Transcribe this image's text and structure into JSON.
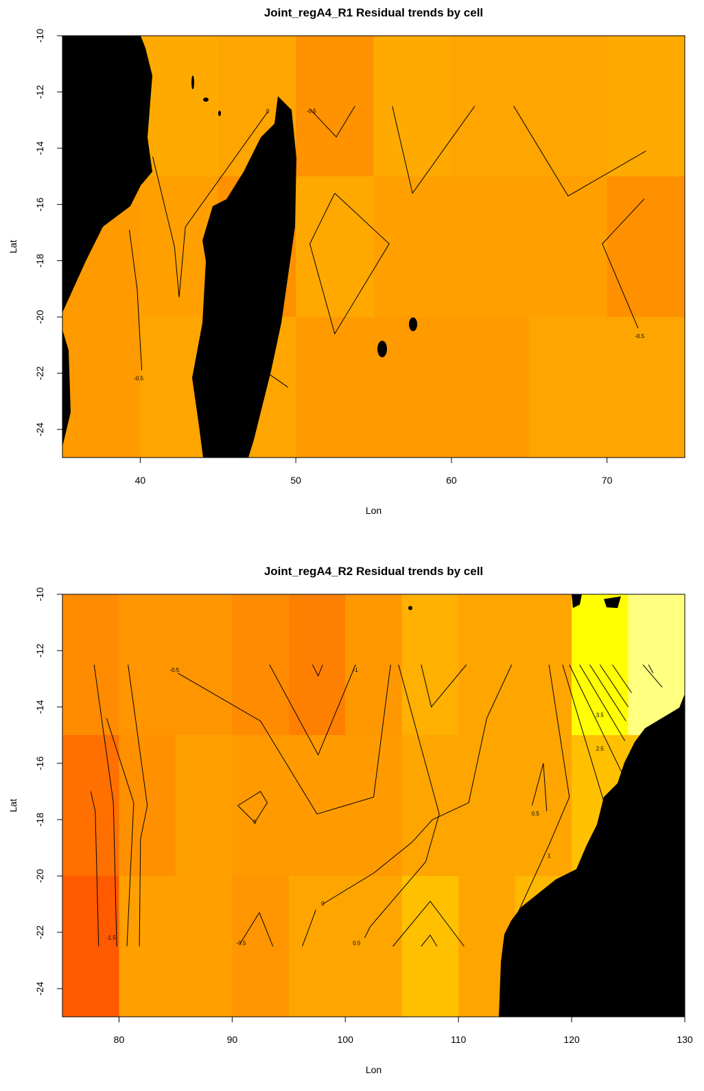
{
  "chart_data": [
    {
      "type": "heatmap",
      "title": "Joint_regA4_R1 Residual trends by cell",
      "x_label": "Lon",
      "y_label": "Lat",
      "xlim": [
        35,
        75
      ],
      "ylim": [
        -25,
        -10
      ],
      "xticks": [
        40,
        50,
        60,
        70
      ],
      "yticks": [
        -10,
        -12,
        -14,
        -16,
        -18,
        -20,
        -22,
        -24
      ],
      "x_edges": [
        35,
        40,
        45,
        50,
        55,
        60,
        65,
        70,
        75
      ],
      "y_edges": [
        -10,
        -15,
        -20,
        -25
      ],
      "cell_colors": [
        [
          "#ffaa00",
          "#ffaa00",
          "#ffa500",
          "#ff9200",
          "#ffaa00",
          "#ffa500",
          "#ffa500",
          "#ffaa00"
        ],
        [
          "#ff9a00",
          "#ffa000",
          "#ff9000",
          "#ffa800",
          "#ffa000",
          "#ffa000",
          "#ffa000",
          "#ff9000"
        ],
        [
          "#ff9a00",
          "#ffa500",
          "#ffa500",
          "#ff9a00",
          "#ff9a00",
          "#ff9a00",
          "#ffa500",
          "#ffa500"
        ]
      ],
      "contour_color": "#000000",
      "contours": [
        {
          "points": [
            [
              39.3,
              -16.9
            ],
            [
              39.8,
              -19
            ],
            [
              40.1,
              -21.9
            ]
          ],
          "label": -0.5,
          "label_at": [
            39.9,
            -22.2
          ]
        },
        {
          "points": [
            [
              40.8,
              -14.3
            ],
            [
              42.2,
              -17.5
            ],
            [
              42.5,
              -19.3
            ],
            [
              42.9,
              -16.8
            ],
            [
              48.2,
              -12.7
            ]
          ],
          "label": 0,
          "label_at": [
            48.2,
            -12.7
          ]
        },
        {
          "points": [
            [
              50.9,
              -12.6
            ],
            [
              52.6,
              -13.6
            ],
            [
              53.8,
              -12.5
            ]
          ],
          "label": -0.5,
          "label_at": [
            51,
            -12.7
          ]
        },
        {
          "points": [
            [
              52.5,
              -15.6
            ],
            [
              50.9,
              -17.4
            ],
            [
              52.5,
              -20.6
            ],
            [
              56,
              -17.4
            ],
            [
              52.5,
              -15.6
            ]
          ]
        },
        {
          "points": [
            [
              56.2,
              -12.5
            ],
            [
              57.5,
              -15.6
            ],
            [
              61.5,
              -12.5
            ]
          ]
        },
        {
          "points": [
            [
              64,
              -12.5
            ],
            [
              67.5,
              -15.7
            ],
            [
              72.5,
              -14.1
            ]
          ]
        },
        {
          "points": [
            [
              72.4,
              -15.8
            ],
            [
              69.7,
              -17.4
            ],
            [
              72,
              -20.4
            ]
          ],
          "label": -0.5,
          "label_at": [
            72.1,
            -20.7
          ]
        },
        {
          "points": [
            [
              48.2,
              -22
            ],
            [
              49.5,
              -22.5
            ]
          ]
        }
      ]
    },
    {
      "type": "heatmap",
      "title": "Joint_regA4_R2 Residual trends by cell",
      "x_label": "Lon",
      "y_label": "Lat",
      "xlim": [
        75,
        130
      ],
      "ylim": [
        -25,
        -10
      ],
      "xticks": [
        80,
        90,
        100,
        110,
        120,
        130
      ],
      "yticks": [
        -10,
        -12,
        -14,
        -16,
        -18,
        -20,
        -22,
        -24
      ],
      "x_edges": [
        75,
        80,
        85,
        90,
        95,
        100,
        105,
        110,
        115,
        120,
        125,
        130
      ],
      "y_edges": [
        -10,
        -15,
        -20,
        -25
      ],
      "cell_colors": [
        [
          "#ff8c00",
          "#ff9500",
          "#ff9500",
          "#ff8c00",
          "#ff8000",
          "#ff9800",
          "#ffb000",
          "#ffa500",
          "#ffa500",
          "#ffff00",
          "#ffff80"
        ],
        [
          "#ff7000",
          "#ff9000",
          "#ffa000",
          "#ff9a00",
          "#ff9a00",
          "#ff9a00",
          "#ffa500",
          "#ffa500",
          "#ffa500",
          "#ffc000",
          "#ffc000"
        ],
        [
          "#ff5a00",
          "#ffa000",
          "#ffa000",
          "#ff9500",
          "#ffa500",
          "#ffa500",
          "#ffc000",
          "#ffa500",
          "#ffb800",
          "#ffc000",
          "#ffc000"
        ]
      ],
      "contour_color": "#000000",
      "contours": [
        {
          "points": [
            [
              77.8,
              -12.5
            ],
            [
              79.5,
              -17.4
            ],
            [
              79.8,
              -22.5
            ]
          ]
        },
        {
          "points": [
            [
              80.8,
              -12.5
            ],
            [
              82.5,
              -17.5
            ],
            [
              81.9,
              -18.7
            ],
            [
              81.8,
              -22.5
            ]
          ]
        },
        {
          "points": [
            [
              77.5,
              -17
            ],
            [
              77.9,
              -17.7
            ],
            [
              78.2,
              -22.5
            ]
          ],
          "label": -1.5,
          "label_at": [
            79.3,
            -22.2
          ]
        },
        {
          "points": [
            [
              78.9,
              -14.4
            ],
            [
              81.3,
              -17.4
            ],
            [
              80.7,
              -22.5
            ]
          ]
        },
        {
          "points": [
            [
              85.2,
              -12.8
            ],
            [
              92.5,
              -14.5
            ],
            [
              97.5,
              -17.8
            ],
            [
              102.5,
              -17.2
            ],
            [
              104,
              -12.5
            ]
          ],
          "label": -0.5,
          "label_at": [
            84.9,
            -12.7
          ]
        },
        {
          "points": [
            [
              93.3,
              -12.5
            ],
            [
              97.6,
              -15.7
            ],
            [
              100.9,
              -12.5
            ]
          ],
          "label": -1,
          "label_at": [
            100.9,
            -12.7
          ]
        },
        {
          "points": [
            [
              97.1,
              -12.5
            ],
            [
              97.6,
              -12.9
            ],
            [
              98,
              -12.5
            ]
          ]
        },
        {
          "points": [
            [
              90.5,
              -17.5
            ],
            [
              92.5,
              -17
            ],
            [
              93.1,
              -17.4
            ],
            [
              92,
              -18.1
            ],
            [
              90.5,
              -17.5
            ]
          ],
          "label": 0,
          "label_at": [
            92,
            -18.1
          ]
        },
        {
          "points": [
            [
              90.7,
              -22.4
            ],
            [
              92.4,
              -21.3
            ],
            [
              93.6,
              -22.5
            ]
          ],
          "label": -0.5,
          "label_at": [
            90.8,
            -22.4
          ]
        },
        {
          "points": [
            [
              96.2,
              -22.5
            ],
            [
              97.4,
              -21.2
            ]
          ]
        },
        {
          "points": [
            [
              98,
              -21
            ],
            [
              102.5,
              -19.9
            ],
            [
              105.9,
              -18.8
            ],
            [
              107.7,
              -18
            ],
            [
              110.9,
              -17.4
            ],
            [
              112.5,
              -14.4
            ],
            [
              114.7,
              -12.5
            ]
          ],
          "label": 0,
          "label_at": [
            98,
            -21
          ]
        },
        {
          "points": [
            [
              101.7,
              -22.2
            ],
            [
              102.2,
              -21.8
            ],
            [
              107.1,
              -19.5
            ],
            [
              108.3,
              -17.8
            ],
            [
              104.7,
              -12.5
            ]
          ],
          "label": 0.5,
          "label_at": [
            101,
            -22.4
          ]
        },
        {
          "points": [
            [
              104.2,
              -22.5
            ],
            [
              107.5,
              -20.9
            ],
            [
              110.5,
              -22.5
            ]
          ]
        },
        {
          "points": [
            [
              106.7,
              -22.5
            ],
            [
              107.5,
              -22.1
            ],
            [
              108.1,
              -22.5
            ]
          ]
        },
        {
          "points": [
            [
              106.7,
              -12.5
            ],
            [
              107.6,
              -14
            ],
            [
              110.7,
              -12.5
            ]
          ]
        },
        {
          "points": [
            [
              116.5,
              -17.5
            ],
            [
              117.5,
              -16
            ],
            [
              117.8,
              -17.7
            ]
          ],
          "label": 0.5,
          "label_at": [
            116.8,
            -17.8
          ]
        },
        {
          "points": [
            [
              114.8,
              -21.7
            ],
            [
              118,
              -18.9
            ],
            [
              119.8,
              -17.2
            ],
            [
              118,
              -12.5
            ]
          ],
          "label": 1,
          "label_at": [
            118,
            -19.3
          ]
        },
        {
          "points": [
            [
              119.2,
              -12.5
            ],
            [
              122.8,
              -17.3
            ]
          ]
        },
        {
          "points": [
            [
              119.8,
              -12.5
            ],
            [
              124.4,
              -16.3
            ]
          ],
          "label": 2.5,
          "label_at": [
            122.5,
            -15.5
          ]
        },
        {
          "points": [
            [
              120.7,
              -12.5
            ],
            [
              124.7,
              -15.2
            ]
          ]
        },
        {
          "points": [
            [
              121.6,
              -12.5
            ],
            [
              124.8,
              -14.5
            ]
          ],
          "label": 3.5,
          "label_at": [
            122.5,
            -14.3
          ]
        },
        {
          "points": [
            [
              122.5,
              -12.5
            ],
            [
              125,
              -14
            ]
          ]
        },
        {
          "points": [
            [
              123.6,
              -12.5
            ],
            [
              125.3,
              -13.5
            ]
          ]
        },
        {
          "points": [
            [
              126.3,
              -12.5
            ],
            [
              128,
              -13.3
            ]
          ]
        },
        {
          "points": [
            [
              126.8,
              -12.5
            ],
            [
              127.2,
              -12.8
            ]
          ]
        }
      ]
    }
  ]
}
